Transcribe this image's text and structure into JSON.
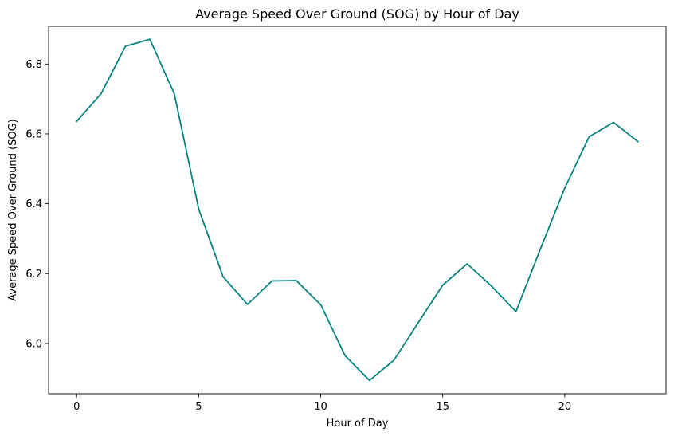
{
  "chart_data": {
    "type": "line",
    "title": "Average Speed Over Ground (SOG) by Hour of Day",
    "xlabel": "Hour of Day",
    "ylabel": "Average Speed Over Ground (SOG)",
    "xlim": [
      -1.15,
      24.15
    ],
    "ylim": [
      5.856,
      6.908
    ],
    "xticks": [
      0,
      5,
      10,
      15,
      20
    ],
    "yticks": [
      6.0,
      6.2,
      6.4,
      6.6,
      6.8
    ],
    "ytick_labels": [
      "6.0",
      "6.2",
      "6.4",
      "6.6",
      "6.8"
    ],
    "grid": false,
    "series": [
      {
        "color": "#008080",
        "x": [
          0,
          1,
          2,
          3,
          4,
          5,
          6,
          7,
          8,
          9,
          10,
          11,
          12,
          13,
          14,
          15,
          16,
          17,
          18,
          19,
          20,
          21,
          22,
          23
        ],
        "y": [
          6.636,
          6.715,
          6.851,
          6.871,
          6.715,
          6.385,
          6.191,
          6.112,
          6.179,
          6.18,
          6.111,
          5.965,
          5.894,
          5.952,
          6.06,
          6.167,
          6.228,
          6.164,
          6.091,
          6.27,
          6.445,
          6.592,
          6.633,
          6.578
        ]
      }
    ]
  }
}
